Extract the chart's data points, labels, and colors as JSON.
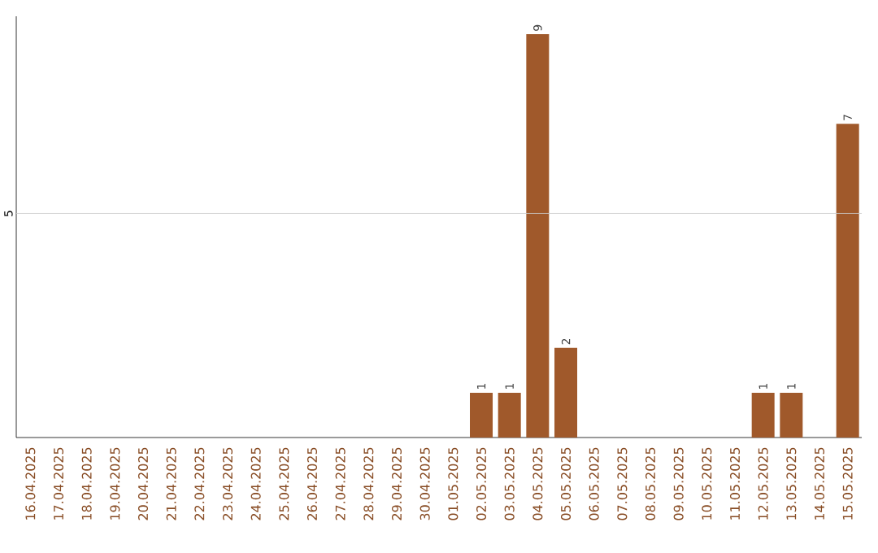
{
  "chart_data": {
    "type": "bar",
    "categories": [
      "16.04.2025",
      "17.04.2025",
      "18.04.2025",
      "19.04.2025",
      "20.04.2025",
      "21.04.2025",
      "22.04.2025",
      "23.04.2025",
      "24.04.2025",
      "25.04.2025",
      "26.04.2025",
      "27.04.2025",
      "28.04.2025",
      "29.04.2025",
      "30.04.2025",
      "01.05.2025",
      "02.05.2025",
      "03.05.2025",
      "04.05.2025",
      "05.05.2025",
      "06.05.2025",
      "07.05.2025",
      "08.05.2025",
      "09.05.2025",
      "10.05.2025",
      "11.05.2025",
      "12.05.2025",
      "13.05.2025",
      "14.05.2025",
      "15.05.2025"
    ],
    "values": [
      null,
      null,
      null,
      null,
      null,
      null,
      null,
      null,
      null,
      null,
      null,
      null,
      null,
      null,
      null,
      null,
      1,
      1,
      9,
      2,
      null,
      null,
      null,
      null,
      null,
      null,
      1,
      1,
      null,
      7
    ],
    "data_labels": true,
    "color": "#a0592b",
    "ylim": [
      0,
      9.4
    ],
    "ref_lines": [
      {
        "axis": "y",
        "value": 5,
        "label": "5",
        "color": "#cccccc"
      }
    ]
  }
}
